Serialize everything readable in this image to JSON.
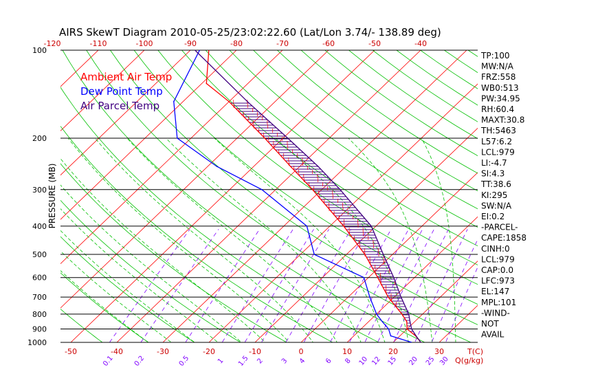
{
  "colors": {
    "ambient": "#ff0000",
    "dewpoint": "#0000ff",
    "parcel": "#400080",
    "isotherm": "#ff0000",
    "dry_adiabat": "#00c000",
    "moist_adiabat": "#00c000",
    "mixing_ratio": "#8000ff",
    "isobar": "#000000",
    "text": "#000000",
    "axis_label": "#cc0000"
  },
  "chart_data": {
    "type": "line",
    "title": "AIRS SkewT Diagram 2010-05-25/23:02:22.60 (Lat/Lon 3.74/- 138.89 deg)",
    "ylabel": "PRESSURE (MB)",
    "xlabel": "T(C)",
    "y_scale": "log",
    "ylim": [
      1000,
      100
    ],
    "pressure_ticks": [
      "100",
      "200",
      "300",
      "400",
      "500",
      "600",
      "700",
      "800",
      "900",
      "1000"
    ],
    "temp_ticks_bottom": [
      "-50",
      "-40",
      "-30",
      "-20",
      "-10",
      "0",
      "10",
      "20",
      "30"
    ],
    "temp_ticks_top": [
      "-120",
      "-110",
      "-100",
      "-90",
      "-80",
      "-70",
      "-60",
      "-50",
      "-40"
    ],
    "mixing_ratio_labels": [
      "0.1",
      "0.2",
      "0.5",
      "1",
      "1.5",
      "2",
      "3",
      "4",
      "6",
      "8",
      "10",
      "12",
      "15",
      "20",
      "25",
      "30"
    ],
    "mixing_ratio_unit": "Q(g/kg)",
    "legend": [
      "Ambient Air Temp",
      "Dew Point Temp",
      "Air Parcel Temp"
    ],
    "series": [
      {
        "name": "Ambient Air Temp",
        "points": [
          [
            1000,
            26
          ],
          [
            950,
            23.4
          ],
          [
            900,
            20
          ],
          [
            850,
            18.3
          ],
          [
            800,
            15.5
          ],
          [
            700,
            8.7
          ],
          [
            600,
            2
          ],
          [
            500,
            -6
          ],
          [
            400,
            -17
          ],
          [
            300,
            -32
          ],
          [
            250,
            -42
          ],
          [
            200,
            -54
          ],
          [
            150,
            -70
          ],
          [
            130,
            -79
          ],
          [
            100,
            -86
          ]
        ]
      },
      {
        "name": "Dew Point Temp",
        "points": [
          [
            1000,
            24
          ],
          [
            950,
            18
          ],
          [
            900,
            16
          ],
          [
            850,
            13
          ],
          [
            800,
            10
          ],
          [
            700,
            4.7
          ],
          [
            600,
            -1
          ],
          [
            500,
            -17
          ],
          [
            400,
            -25
          ],
          [
            300,
            -43
          ],
          [
            250,
            -58
          ],
          [
            200,
            -73
          ],
          [
            150,
            -82
          ],
          [
            100,
            -88
          ]
        ]
      },
      {
        "name": "Air Parcel Temp",
        "points": [
          [
            1000,
            26
          ],
          [
            950,
            23.5
          ],
          [
            900,
            21
          ],
          [
            850,
            19
          ],
          [
            800,
            17
          ],
          [
            700,
            11.5
          ],
          [
            600,
            5.5
          ],
          [
            500,
            -2
          ],
          [
            400,
            -11
          ],
          [
            300,
            -26
          ],
          [
            250,
            -36
          ],
          [
            200,
            -49
          ],
          [
            150,
            -66
          ],
          [
            100,
            -89
          ]
        ]
      }
    ],
    "side_panel": [
      "TP:100",
      "MW:N/A",
      "FRZ:558",
      "WB0:513",
      "PW:34.95",
      "RH:60.4",
      "MAXT:30.8",
      "TH:5463",
      "L57:6.2",
      "LCL:979",
      "LI:-4.7",
      "SI:4.3",
      "TT:38.6",
      "KI:295",
      "SW:N/A",
      "EI:0.2",
      "-PARCEL-",
      "CAPE:1858",
      "CINH:0",
      "LCL:979",
      "CAP:0.0",
      "LFC:973",
      "EL:147",
      "MPL:101",
      "-WIND-",
      "NOT",
      "AVAIL"
    ]
  }
}
